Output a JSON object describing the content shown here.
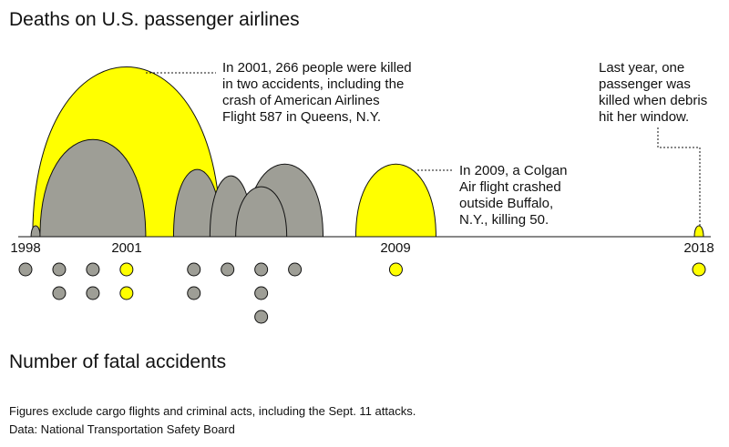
{
  "title": "Deaths on U.S. passenger airlines",
  "subtitle": "Number of fatal accidents",
  "note": "Figures exclude cargo flights and criminal acts, including the Sept. 11 attacks.",
  "source": "Data: National Transportation Safety Board",
  "colors": {
    "highlight": "#ffff00",
    "default": "#9e9e96",
    "stroke": "#111111"
  },
  "annotations": {
    "y2001": "In 2001, 266 people were killed\nin two accidents, including the\ncrash of American Airlines\nFlight 587 in Queens, N.Y.",
    "y2009": "In 2009, a Colgan\nAir flight crashed\noutside Buffalo,\nN.Y., killing 50.",
    "y2018": "Last year, one\npassenger was\nkilled when debris\nhit her window."
  },
  "chart_data": {
    "type": "other",
    "title": "Deaths on U.S. passenger airlines",
    "xlim": [
      1998,
      2018
    ],
    "tick_labels": [
      "1998",
      "2001",
      "2009",
      "2018"
    ],
    "highlight_years": [
      2001,
      2009,
      2018
    ],
    "accidents_per_year": [
      {
        "year": 1998,
        "count": 1
      },
      {
        "year": 1999,
        "count": 2
      },
      {
        "year": 2000,
        "count": 2
      },
      {
        "year": 2001,
        "count": 2
      },
      {
        "year": 2002,
        "count": 0
      },
      {
        "year": 2003,
        "count": 2
      },
      {
        "year": 2004,
        "count": 1
      },
      {
        "year": 2005,
        "count": 3
      },
      {
        "year": 2006,
        "count": 1
      },
      {
        "year": 2007,
        "count": 0
      },
      {
        "year": 2008,
        "count": 0
      },
      {
        "year": 2009,
        "count": 1
      },
      {
        "year": 2010,
        "count": 0
      },
      {
        "year": 2011,
        "count": 0
      },
      {
        "year": 2012,
        "count": 0
      },
      {
        "year": 2013,
        "count": 0
      },
      {
        "year": 2014,
        "count": 0
      },
      {
        "year": 2015,
        "count": 0
      },
      {
        "year": 2016,
        "count": 0
      },
      {
        "year": 2017,
        "count": 0
      },
      {
        "year": 2018,
        "count": 1
      }
    ],
    "deaths_per_year": [
      {
        "year": 1998,
        "deaths": 1
      },
      {
        "year": 1999,
        "deaths": 12
      },
      {
        "year": 2000,
        "deaths": 92
      },
      {
        "year": 2001,
        "deaths": 266
      },
      {
        "year": 2003,
        "deaths": 22
      },
      {
        "year": 2004,
        "deaths": 13
      },
      {
        "year": 2005,
        "deaths": 22
      },
      {
        "year": 2006,
        "deaths": 49
      },
      {
        "year": 2009,
        "deaths": 50
      },
      {
        "year": 2018,
        "deaths": 1
      }
    ]
  }
}
